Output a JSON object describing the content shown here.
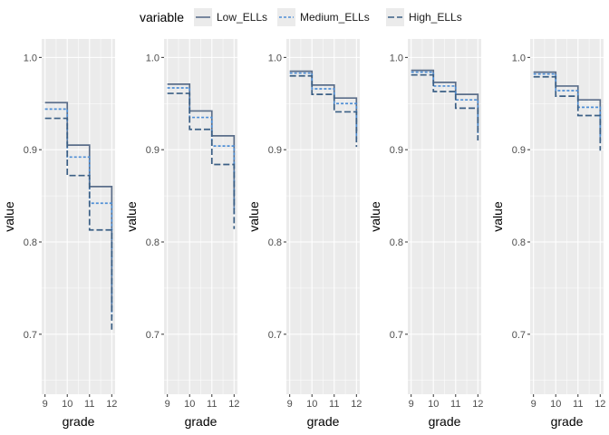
{
  "chart_data": {
    "type": "line",
    "step": true,
    "legend": {
      "title": "variable",
      "position": "top",
      "entries": [
        {
          "name": "Low_ELLs",
          "color": "#5b6e8a",
          "dash": "solid"
        },
        {
          "name": "Medium_ELLs",
          "color": "#4f8fd6",
          "dash": "dotted"
        },
        {
          "name": "High_ELLs",
          "color": "#3b5f85",
          "dash": "dashed"
        }
      ]
    },
    "x_ticks": [
      "9",
      "10",
      "11",
      "12"
    ],
    "y_ticks": [
      "0.7",
      "0.8",
      "0.9",
      "1.0"
    ],
    "panel_background": "#ebebeb",
    "grid_color": "#ffffff",
    "panels": [
      {
        "xlabel": "grade",
        "ylabel": "value",
        "xlim": [
          9,
          12
        ],
        "ylim": [
          0.635,
          1.02
        ],
        "series": [
          {
            "name": "Low_ELLs",
            "x": [
              9,
              10,
              11,
              12
            ],
            "y": [
              0.951,
              0.905,
              0.86,
              0.724
            ]
          },
          {
            "name": "Medium_ELLs",
            "x": [
              9,
              10,
              11,
              12
            ],
            "y": [
              0.944,
              0.892,
              0.842,
              0.718
            ]
          },
          {
            "name": "High_ELLs",
            "x": [
              9,
              10,
              11,
              12
            ],
            "y": [
              0.934,
              0.872,
              0.813,
              0.705
            ]
          }
        ]
      },
      {
        "xlabel": "grade",
        "ylabel": "value",
        "xlim": [
          9,
          12
        ],
        "ylim": [
          0.635,
          1.02
        ],
        "series": [
          {
            "name": "Low_ELLs",
            "x": [
              9,
              10,
              11,
              12
            ],
            "y": [
              0.971,
              0.942,
              0.915,
              0.838
            ]
          },
          {
            "name": "Medium_ELLs",
            "x": [
              9,
              10,
              11,
              12
            ],
            "y": [
              0.967,
              0.935,
              0.904,
              0.828
            ]
          },
          {
            "name": "High_ELLs",
            "x": [
              9,
              10,
              11,
              12
            ],
            "y": [
              0.961,
              0.922,
              0.884,
              0.814
            ]
          }
        ]
      },
      {
        "xlabel": "grade",
        "ylabel": "value",
        "xlim": [
          9,
          12
        ],
        "ylim": [
          0.635,
          1.02
        ],
        "series": [
          {
            "name": "Low_ELLs",
            "x": [
              9,
              10,
              11,
              12
            ],
            "y": [
              0.985,
              0.97,
              0.956,
              0.92
            ]
          },
          {
            "name": "Medium_ELLs",
            "x": [
              9,
              10,
              11,
              12
            ],
            "y": [
              0.983,
              0.966,
              0.95,
              0.912
            ]
          },
          {
            "name": "High_ELLs",
            "x": [
              9,
              10,
              11,
              12
            ],
            "y": [
              0.98,
              0.96,
              0.941,
              0.903
            ]
          }
        ]
      },
      {
        "xlabel": "grade",
        "ylabel": "value",
        "xlim": [
          9,
          12
        ],
        "ylim": [
          0.635,
          1.02
        ],
        "series": [
          {
            "name": "Low_ELLs",
            "x": [
              9,
              10,
              11,
              12
            ],
            "y": [
              0.986,
              0.973,
              0.96,
              0.925
            ]
          },
          {
            "name": "Medium_ELLs",
            "x": [
              9,
              10,
              11,
              12
            ],
            "y": [
              0.984,
              0.969,
              0.954,
              0.918
            ]
          },
          {
            "name": "High_ELLs",
            "x": [
              9,
              10,
              11,
              12
            ],
            "y": [
              0.981,
              0.963,
              0.945,
              0.91
            ]
          }
        ]
      },
      {
        "xlabel": "grade",
        "ylabel": "value",
        "xlim": [
          9,
          12
        ],
        "ylim": [
          0.635,
          1.02
        ],
        "series": [
          {
            "name": "Low_ELLs",
            "x": [
              9,
              10,
              11,
              12
            ],
            "y": [
              0.984,
              0.969,
              0.954,
              0.915
            ]
          },
          {
            "name": "Medium_ELLs",
            "x": [
              9,
              10,
              11,
              12
            ],
            "y": [
              0.982,
              0.964,
              0.946,
              0.907
            ]
          },
          {
            "name": "High_ELLs",
            "x": [
              9,
              10,
              11,
              12
            ],
            "y": [
              0.979,
              0.958,
              0.937,
              0.899
            ]
          }
        ]
      }
    ]
  }
}
